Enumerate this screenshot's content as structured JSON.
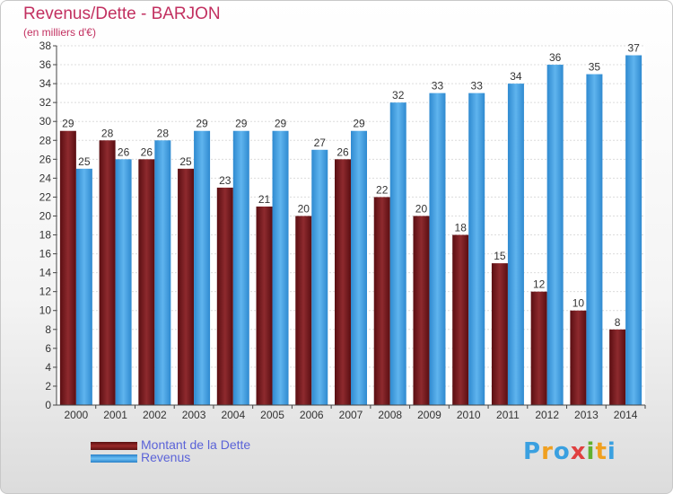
{
  "header": {
    "title": "Revenus/Dette - BARJON",
    "subtitle": "(en milliers d'€)"
  },
  "colors": {
    "title": "#c23060",
    "dette": "#7a1a1f",
    "revenus": "#3d9de0",
    "legend_text": "#5b63d8"
  },
  "chart_data": {
    "type": "bar",
    "title": "Revenus/Dette - BARJON",
    "ylabel": "(en milliers d'€)",
    "xlabel": "",
    "ylim": [
      0,
      38
    ],
    "y_ticks": [
      0,
      2,
      4,
      6,
      8,
      10,
      12,
      14,
      16,
      18,
      20,
      22,
      24,
      26,
      28,
      30,
      32,
      34,
      36,
      38
    ],
    "grid": true,
    "categories": [
      "2000",
      "2001",
      "2002",
      "2003",
      "2004",
      "2005",
      "2006",
      "2007",
      "2008",
      "2009",
      "2010",
      "2011",
      "2012",
      "2013",
      "2014"
    ],
    "series": [
      {
        "name": "Montant de la Dette",
        "values": [
          29,
          28,
          26,
          25,
          23,
          21,
          20,
          26,
          22,
          20,
          18,
          15,
          12,
          10,
          8
        ]
      },
      {
        "name": "Revenus",
        "values": [
          25,
          26,
          28,
          29,
          29,
          29,
          27,
          29,
          32,
          33,
          33,
          34,
          36,
          35,
          37
        ]
      }
    ],
    "legend_position": "bottom-left"
  },
  "legend": [
    {
      "label": "Montant de la Dette"
    },
    {
      "label": "Revenus"
    }
  ],
  "logo": {
    "text": "Proxiti",
    "letters": [
      "P",
      "r",
      "o",
      "x",
      "i",
      "t",
      "i"
    ],
    "letter_colors": [
      "#3aa0e0",
      "#f0a020",
      "#3aa0e0",
      "#e04040",
      "#60b030",
      "#f0a020",
      "#3aa0e0"
    ]
  }
}
